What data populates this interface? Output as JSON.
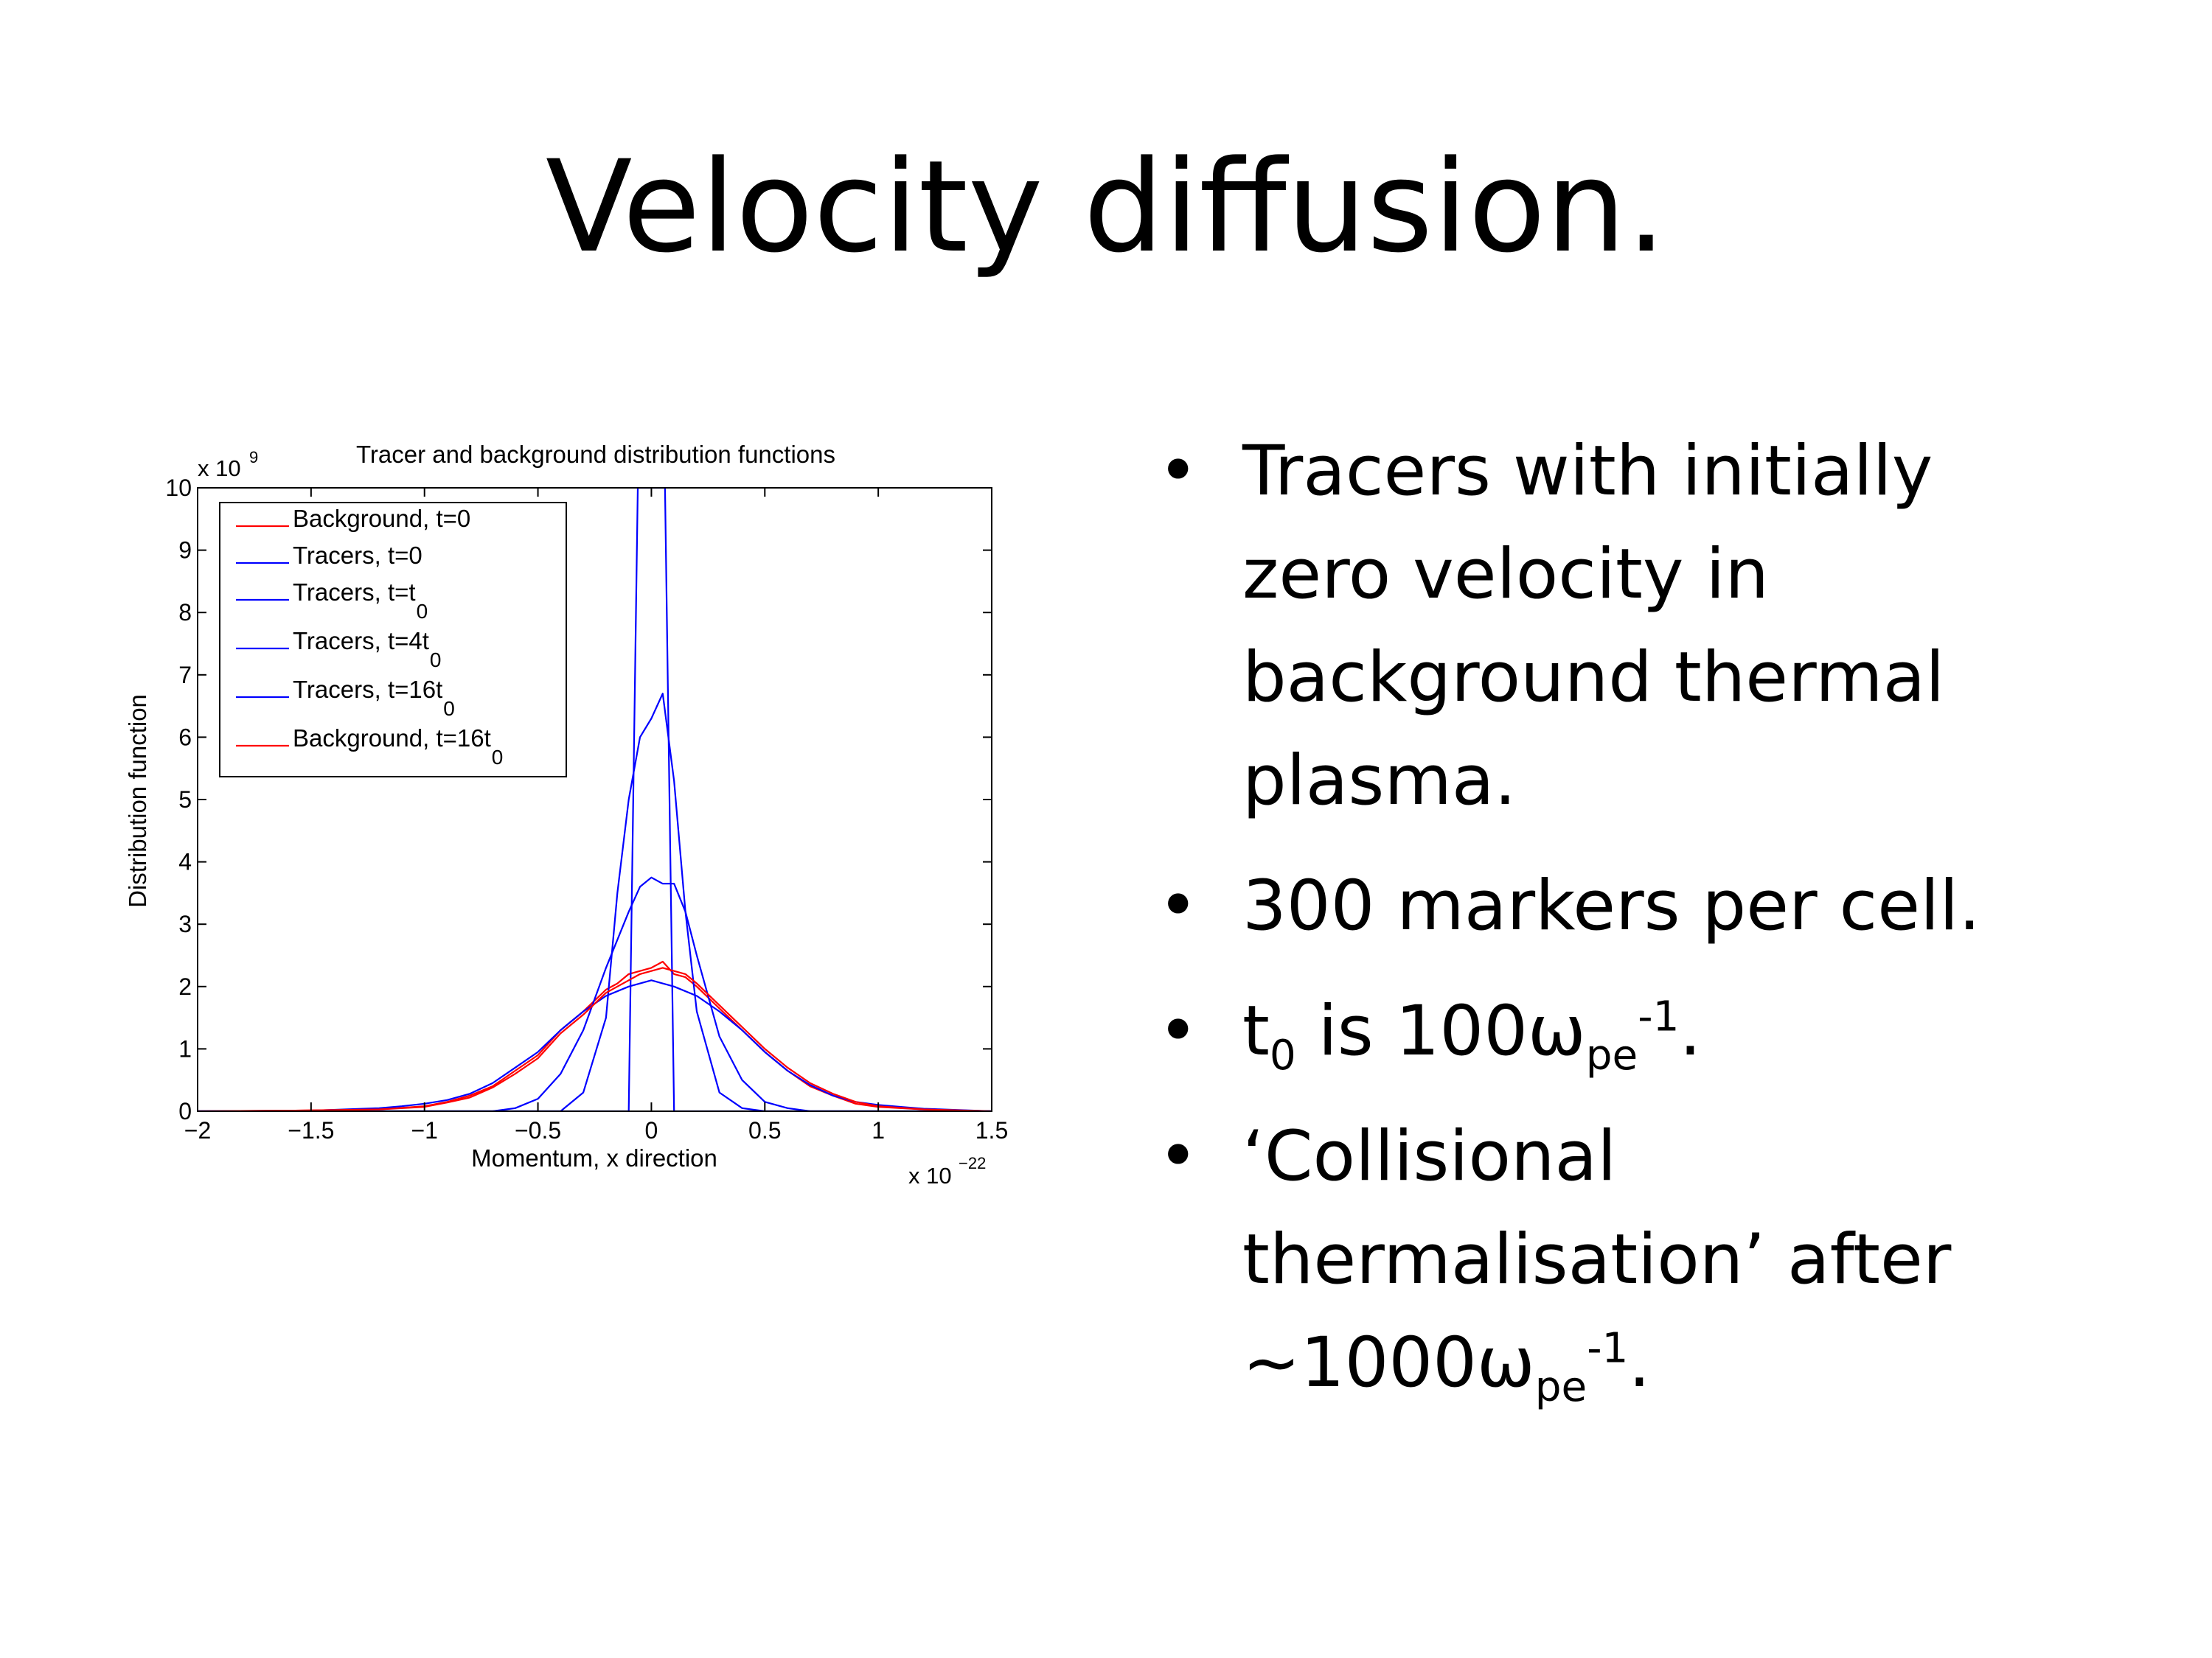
{
  "slide": {
    "title": "Velocity diffusion.",
    "bullets": [
      {
        "parts": [
          {
            "t": "Tracers with initially zero velocity in background thermal plasma."
          }
        ]
      },
      {
        "parts": [
          {
            "t": "300 markers per cell."
          }
        ]
      },
      {
        "parts": [
          {
            "t": "t"
          },
          {
            "sub": "0"
          },
          {
            "t": " is 100ω"
          },
          {
            "sub": "pe"
          },
          {
            "sup": "-1"
          },
          {
            "t": "."
          }
        ]
      },
      {
        "parts": [
          {
            "t": "‘Collisional thermalisation’ after ~1000ω"
          },
          {
            "sub": "pe"
          },
          {
            "sup": "-1"
          },
          {
            "t": "."
          }
        ]
      }
    ],
    "bullet_glyph": "•"
  },
  "chart_data": {
    "type": "line",
    "title": "Tracer and background distribution functions",
    "xlabel": "Momentum, x direction",
    "ylabel": "Distribution function",
    "x_multiplier_label": "x 10",
    "x_multiplier_exp": "−22",
    "y_multiplier_label": "x 10",
    "y_multiplier_exp": "9",
    "xlim": [
      -2,
      1.5
    ],
    "ylim": [
      0,
      10
    ],
    "x_ticks": [
      -2,
      -1.5,
      -1,
      -0.5,
      0,
      0.5,
      1,
      1.5
    ],
    "x_tick_labels": [
      "−2",
      "−1.5",
      "−1",
      "−0.5",
      "0",
      "0.5",
      "1",
      "1.5"
    ],
    "y_ticks": [
      0,
      1,
      2,
      3,
      4,
      5,
      6,
      7,
      8,
      9,
      10
    ],
    "y_tick_labels": [
      "0",
      "1",
      "2",
      "3",
      "4",
      "5",
      "6",
      "7",
      "8",
      "9",
      "10"
    ],
    "grid": false,
    "legend_position": "top-left",
    "series": [
      {
        "name": "Background, t=0",
        "name_sub": "",
        "color": "#ff0000",
        "x": [
          -2,
          -1.6,
          -1.2,
          -1.0,
          -0.9,
          -0.8,
          -0.7,
          -0.6,
          -0.5,
          -0.4,
          -0.3,
          -0.2,
          -0.15,
          -0.1,
          -0.05,
          0,
          0.05,
          0.1,
          0.15,
          0.2,
          0.3,
          0.4,
          0.5,
          0.6,
          0.7,
          0.8,
          0.9,
          1.0,
          1.2,
          1.5
        ],
        "y": [
          0,
          0.01,
          0.03,
          0.08,
          0.15,
          0.25,
          0.4,
          0.65,
          0.9,
          1.3,
          1.6,
          1.95,
          2.05,
          2.2,
          2.25,
          2.3,
          2.4,
          2.2,
          2.15,
          2.0,
          1.65,
          1.3,
          0.95,
          0.65,
          0.4,
          0.25,
          0.12,
          0.07,
          0.03,
          0
        ]
      },
      {
        "name": "Tracers, t=0",
        "name_sub": "",
        "color": "#0000ff",
        "x": [
          -2,
          -0.1,
          -0.08,
          -0.06,
          0.06,
          0.08,
          0.1,
          1.5
        ],
        "y": [
          0,
          0,
          5,
          10,
          10,
          5,
          0,
          0
        ]
      },
      {
        "name": "Tracers, t=t",
        "name_sub": "0",
        "color": "#0000ff",
        "x": [
          -2,
          -0.4,
          -0.3,
          -0.2,
          -0.15,
          -0.1,
          -0.05,
          0,
          0.05,
          0.1,
          0.15,
          0.2,
          0.3,
          0.4,
          0.5,
          1.5
        ],
        "y": [
          0,
          0,
          0.3,
          1.5,
          3.5,
          5.0,
          6.0,
          6.3,
          6.7,
          5.3,
          3.2,
          1.6,
          0.3,
          0.05,
          0,
          0
        ]
      },
      {
        "name": "Tracers, t=4t",
        "name_sub": "0",
        "color": "#0000ff",
        "x": [
          -2,
          -0.7,
          -0.6,
          -0.5,
          -0.4,
          -0.3,
          -0.2,
          -0.1,
          -0.05,
          0,
          0.05,
          0.1,
          0.15,
          0.2,
          0.3,
          0.4,
          0.5,
          0.6,
          0.7,
          1.5
        ],
        "y": [
          0,
          0,
          0.05,
          0.2,
          0.6,
          1.3,
          2.3,
          3.2,
          3.6,
          3.75,
          3.65,
          3.65,
          3.2,
          2.5,
          1.2,
          0.5,
          0.15,
          0.05,
          0,
          0
        ]
      },
      {
        "name": "Tracers, t=16t",
        "name_sub": "0",
        "color": "#0000ff",
        "x": [
          -2,
          -1.5,
          -1.2,
          -1.1,
          -1.0,
          -0.9,
          -0.8,
          -0.7,
          -0.6,
          -0.5,
          -0.4,
          -0.3,
          -0.2,
          -0.1,
          0,
          0.1,
          0.2,
          0.3,
          0.4,
          0.5,
          0.6,
          0.7,
          0.8,
          0.9,
          1.0,
          1.1,
          1.2,
          1.5
        ],
        "y": [
          0,
          0.01,
          0.05,
          0.08,
          0.12,
          0.18,
          0.28,
          0.45,
          0.7,
          0.95,
          1.3,
          1.6,
          1.85,
          2.0,
          2.1,
          2.0,
          1.85,
          1.6,
          1.3,
          0.95,
          0.65,
          0.42,
          0.25,
          0.15,
          0.1,
          0.07,
          0.04,
          0
        ]
      },
      {
        "name": "Background, t=16t",
        "name_sub": "0",
        "color": "#ff0000",
        "x": [
          -2,
          -1.6,
          -1.2,
          -1.0,
          -0.9,
          -0.8,
          -0.7,
          -0.6,
          -0.5,
          -0.4,
          -0.3,
          -0.2,
          -0.1,
          -0.05,
          0,
          0.05,
          0.1,
          0.15,
          0.2,
          0.3,
          0.4,
          0.5,
          0.6,
          0.7,
          0.8,
          0.9,
          1.0,
          1.2,
          1.5
        ],
        "y": [
          0,
          0.01,
          0.03,
          0.07,
          0.14,
          0.22,
          0.38,
          0.6,
          0.85,
          1.25,
          1.55,
          1.9,
          2.1,
          2.2,
          2.25,
          2.3,
          2.25,
          2.2,
          2.05,
          1.7,
          1.35,
          1.0,
          0.7,
          0.45,
          0.28,
          0.15,
          0.08,
          0.03,
          0
        ]
      }
    ]
  }
}
